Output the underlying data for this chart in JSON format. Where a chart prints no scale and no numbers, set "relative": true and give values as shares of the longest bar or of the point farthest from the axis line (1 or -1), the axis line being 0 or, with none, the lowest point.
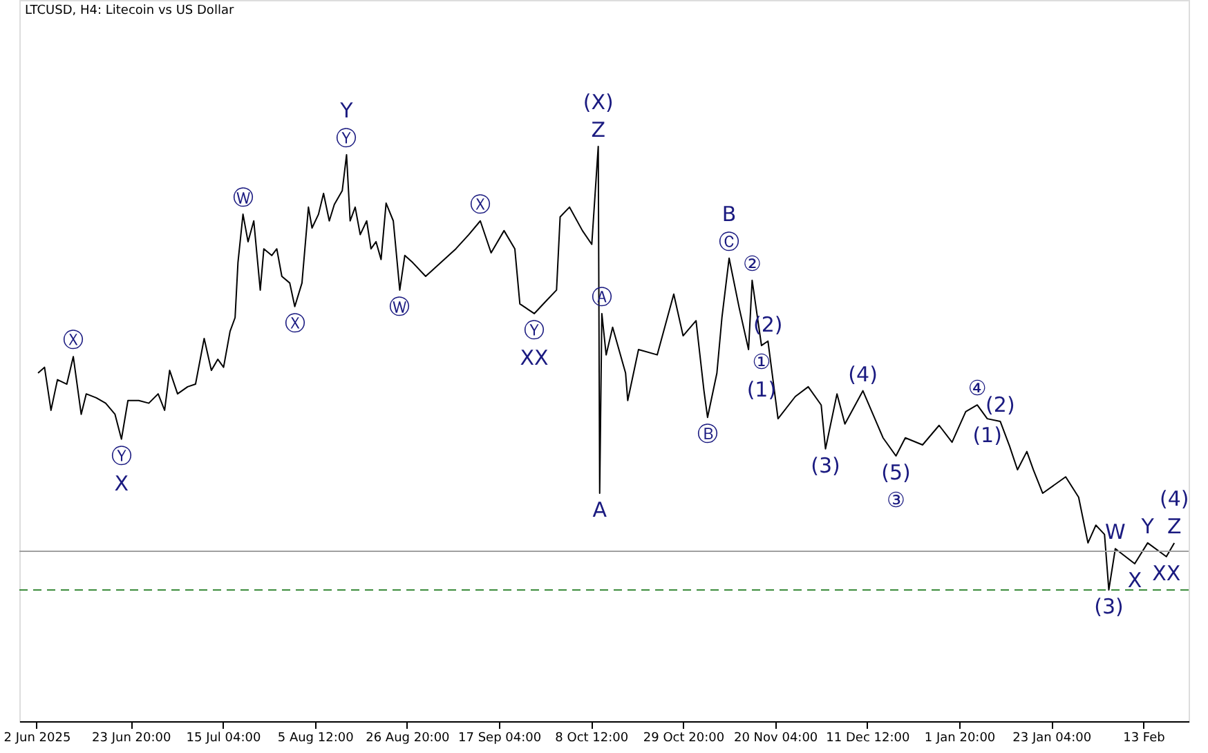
{
  "chart_data": {
    "type": "line",
    "title": "LTCUSD, H4:  Litecoin vs US Dollar",
    "relative": true,
    "xlim": [
      "2025-05-29T00:00",
      "2026-02-24T00:00"
    ],
    "xticks": [
      {
        "value": "2025-06-02T00:00",
        "label": "2 Jun 2025"
      },
      {
        "value": "2025-06-23T20:00",
        "label": "23 Jun 20:00"
      },
      {
        "value": "2025-07-15T04:00",
        "label": "15 Jul 04:00"
      },
      {
        "value": "2025-08-05T12:00",
        "label": "5 Aug 12:00"
      },
      {
        "value": "2025-08-26T20:00",
        "label": "26 Aug 20:00"
      },
      {
        "value": "2025-09-17T04:00",
        "label": "17 Sep 04:00"
      },
      {
        "value": "2025-10-08T12:00",
        "label": "8 Oct 12:00"
      },
      {
        "value": "2025-10-29T20:00",
        "label": "29 Oct 20:00"
      },
      {
        "value": "2025-11-20T04:00",
        "label": "20 Nov 04:00"
      },
      {
        "value": "2025-12-11T12:00",
        "label": "11 Dec 12:00"
      },
      {
        "value": "2026-01-01T20:00",
        "label": "1 Jan 20:00"
      },
      {
        "value": "2026-01-23T04:00",
        "label": "23 Jan 04:00"
      },
      {
        "value": "2026-02-13T12:00",
        "label": "13 Feb"
      }
    ],
    "x": [
      "2025-06-02T08:00",
      "2025-06-03T20:00",
      "2025-06-05T08:00",
      "2025-06-06T20:00",
      "2025-06-09T00:00",
      "2025-06-10T12:00",
      "2025-06-12T08:00",
      "2025-06-13T12:00",
      "2025-06-15T20:00",
      "2025-06-18T00:00",
      "2025-06-20T04:00",
      "2025-06-21T16:00",
      "2025-06-23T04:00",
      "2025-06-25T16:00",
      "2025-06-28T00:00",
      "2025-06-30T04:00",
      "2025-07-01T16:00",
      "2025-07-02T20:00",
      "2025-07-04T16:00",
      "2025-07-07T00:00",
      "2025-07-08T20:00",
      "2025-07-10T20:00",
      "2025-07-12T12:00",
      "2025-07-14T00:00",
      "2025-07-15T08:00",
      "2025-07-16T20:00",
      "2025-07-18T00:00",
      "2025-07-18T16:00",
      "2025-07-19T20:00",
      "2025-07-21T00:00",
      "2025-07-22T08:00",
      "2025-07-23T20:00",
      "2025-07-24T16:00",
      "2025-07-26T12:00",
      "2025-07-27T16:00",
      "2025-07-28T20:00",
      "2025-07-30T16:00",
      "2025-07-31T20:00",
      "2025-08-02T12:00",
      "2025-08-04T00:00",
      "2025-08-04T20:00",
      "2025-08-06T08:00",
      "2025-08-07T12:00",
      "2025-08-08T20:00",
      "2025-08-10T00:00",
      "2025-08-11T20:00",
      "2025-08-12T20:00",
      "2025-08-13T16:00",
      "2025-08-14T20:00",
      "2025-08-16T00:00",
      "2025-08-17T12:00",
      "2025-08-18T12:00",
      "2025-08-19T16:00",
      "2025-08-20T20:00",
      "2025-08-22T00:00",
      "2025-08-23T16:00",
      "2025-08-25T04:00",
      "2025-08-26T08:00",
      "2025-08-28T04:00",
      "2025-08-31T04:00",
      "2025-09-07T04:00",
      "2025-09-10T04:00",
      "2025-09-12T20:00",
      "2025-09-15T08:00",
      "2025-09-18T08:00",
      "2025-09-20T20:00",
      "2025-09-22T00:00",
      "2025-09-25T08:00",
      "2025-09-28T08:00",
      "2025-09-30T12:00",
      "2025-10-01T08:00",
      "2025-10-03T12:00",
      "2025-10-06T12:00",
      "2025-10-08T16:00",
      "2025-10-10T04:00",
      "2025-10-10T12:00",
      "2025-10-11T00:00",
      "2025-10-12T00:00",
      "2025-10-13T12:00",
      "2025-10-16T12:00",
      "2025-10-17T00:00",
      "2025-10-19T12:00",
      "2025-10-23T20:00",
      "2025-10-27T16:00",
      "2025-10-29T20:00",
      "2025-11-01T20:00",
      "2025-11-03T16:00",
      "2025-11-04T12:00",
      "2025-11-06T16:00",
      "2025-11-07T20:00",
      "2025-11-09T12:00",
      "2025-11-11T20:00",
      "2025-11-14T00:00",
      "2025-11-14T20:00",
      "2025-11-17T00:00",
      "2025-11-18T12:00",
      "2025-11-20T20:00",
      "2025-11-24T20:00",
      "2025-11-27T20:00",
      "2025-11-30T20:00",
      "2025-12-01T20:00",
      "2025-12-04T12:00",
      "2025-12-06T08:00",
      "2025-12-10T12:00",
      "2025-12-12T20:00",
      "2025-12-15T04:00",
      "2025-12-18T04:00",
      "2025-12-20T08:00",
      "2025-12-24T08:00",
      "2025-12-28T04:00",
      "2025-12-31T04:00",
      "2026-01-03T08:00",
      "2026-01-06T00:00",
      "2026-01-08T08:00",
      "2026-01-11T08:00",
      "2026-01-13T12:00",
      "2026-01-15T08:00",
      "2026-01-17T12:00",
      "2026-01-19T00:00",
      "2026-01-21T04:00",
      "2026-01-26T12:00",
      "2026-01-29T12:00",
      "2026-01-31T16:00",
      "2026-02-02T12:00",
      "2026-02-04T12:00",
      "2026-02-05T12:00",
      "2026-02-07T00:00",
      "2026-02-11T12:00",
      "2026-02-14T12:00",
      "2026-02-18T20:00",
      "2026-02-20T16:00"
    ],
    "series": [
      {
        "color": "#000000",
        "values": [
          0.489,
          0.502,
          0.405,
          0.474,
          0.464,
          0.526,
          0.396,
          0.442,
          0.433,
          0.421,
          0.396,
          0.34,
          0.427,
          0.427,
          0.421,
          0.442,
          0.405,
          0.495,
          0.442,
          0.458,
          0.464,
          0.567,
          0.495,
          0.52,
          0.502,
          0.583,
          0.614,
          0.738,
          0.847,
          0.785,
          0.832,
          0.676,
          0.769,
          0.754,
          0.769,
          0.707,
          0.692,
          0.639,
          0.692,
          0.863,
          0.816,
          0.847,
          0.894,
          0.832,
          0.869,
          0.9,
          0.981,
          0.832,
          0.863,
          0.801,
          0.832,
          0.769,
          0.785,
          0.745,
          0.872,
          0.832,
          0.676,
          0.754,
          0.738,
          0.707,
          0.769,
          0.801,
          0.832,
          0.76,
          0.81,
          0.769,
          0.645,
          0.623,
          0.654,
          0.676,
          0.841,
          0.863,
          0.81,
          0.779,
          1.0,
          0.218,
          0.623,
          0.53,
          0.592,
          0.489,
          0.427,
          0.542,
          0.53,
          0.667,
          0.573,
          0.607,
          0.449,
          0.389,
          0.489,
          0.614,
          0.748,
          0.636,
          0.542,
          0.698,
          0.551,
          0.561,
          0.386,
          0.436,
          0.458,
          0.417,
          0.318,
          0.442,
          0.374,
          0.449,
          0.396,
          0.343,
          0.302,
          0.343,
          0.327,
          0.371,
          0.333,
          0.402,
          0.417,
          0.386,
          0.38,
          0.324,
          0.271,
          0.312,
          0.271,
          0.218,
          0.255,
          0.209,
          0.106,
          0.146,
          0.125,
          0.0,
          0.093,
          0.059,
          0.106,
          0.075,
          0.106
        ]
      }
    ],
    "ref_lines": [
      {
        "axis": "y",
        "value": 0.087,
        "color": "#a0a0a0",
        "line_style": "solid"
      },
      {
        "axis": "y",
        "value": 0.0,
        "color": "#3c8c3c",
        "line_style": "dashed"
      }
    ],
    "annotations": [
      {
        "text": "Ⓧ",
        "x": "2025-06-10T12:00",
        "y": 0.526
      },
      {
        "text": "Ⓨ",
        "x": "2025-06-21T16:00",
        "y": 0.34
      },
      {
        "text": "X",
        "x": "2025-06-21T16:00",
        "y": 0.34
      },
      {
        "text": "Ⓦ",
        "x": "2025-07-19T20:00",
        "y": 0.847
      },
      {
        "text": "Ⓧ",
        "x": "2025-07-31T20:00",
        "y": 0.639
      },
      {
        "text": "Ⓨ",
        "x": "2025-08-12T20:00",
        "y": 0.981
      },
      {
        "text": "Y",
        "x": "2025-08-12T20:00",
        "y": 0.981
      },
      {
        "text": "Ⓦ",
        "x": "2025-08-25T04:00",
        "y": 0.676
      },
      {
        "text": "Ⓧ",
        "x": "2025-09-12T20:00",
        "y": 0.832
      },
      {
        "text": "Ⓨ",
        "x": "2025-09-25T08:00",
        "y": 0.623
      },
      {
        "text": "XX",
        "x": "2025-09-25T08:00",
        "y": 0.623
      },
      {
        "text": "Z",
        "x": "2025-10-10T04:00",
        "y": 1.0
      },
      {
        "text": "(X)",
        "x": "2025-10-10T04:00",
        "y": 1.0
      },
      {
        "text": "A",
        "x": "2025-10-10T12:00",
        "y": 0.218
      },
      {
        "text": "Ⓐ",
        "x": "2025-10-11T00:00",
        "y": 0.623
      },
      {
        "text": "Ⓑ",
        "x": "2025-11-04T12:00",
        "y": 0.389
      },
      {
        "text": "Ⓒ",
        "x": "2025-11-09T12:00",
        "y": 0.748
      },
      {
        "text": "B",
        "x": "2025-11-09T12:00",
        "y": 0.748
      },
      {
        "text": "②",
        "x": "2025-11-14T20:00",
        "y": 0.698
      },
      {
        "text": "(2)",
        "x": "2025-11-18T12:00",
        "y": 0.561
      },
      {
        "text": "①",
        "x": "2025-11-17T00:00",
        "y": 0.551
      },
      {
        "text": "(1)",
        "x": "2025-11-17T00:00",
        "y": 0.551
      },
      {
        "text": "(3)",
        "x": "2025-12-01T20:00",
        "y": 0.318
      },
      {
        "text": "(4)",
        "x": "2025-12-10T12:00",
        "y": 0.449
      },
      {
        "text": "(5)",
        "x": "2025-12-18T04:00",
        "y": 0.302
      },
      {
        "text": "③",
        "x": "2025-12-18T04:00",
        "y": 0.302
      },
      {
        "text": "④",
        "x": "2026-01-06T00:00",
        "y": 0.417
      },
      {
        "text": "(2)",
        "x": "2026-01-11T08:00",
        "y": 0.38
      },
      {
        "text": "(1)",
        "x": "2026-01-08T08:00",
        "y": 0.386
      },
      {
        "text": "(3)",
        "x": "2026-02-05T12:00",
        "y": 0.0
      },
      {
        "text": "W",
        "x": "2026-02-07T00:00",
        "y": 0.093
      },
      {
        "text": "X",
        "x": "2026-02-11T12:00",
        "y": 0.059
      },
      {
        "text": "Y",
        "x": "2026-02-14T12:00",
        "y": 0.106
      },
      {
        "text": "XX",
        "x": "2026-02-18T20:00",
        "y": 0.075
      },
      {
        "text": "Z",
        "x": "2026-02-20T16:00",
        "y": 0.106
      },
      {
        "text": "(4)",
        "x": "2026-02-20T16:00",
        "y": 0.106
      }
    ]
  }
}
